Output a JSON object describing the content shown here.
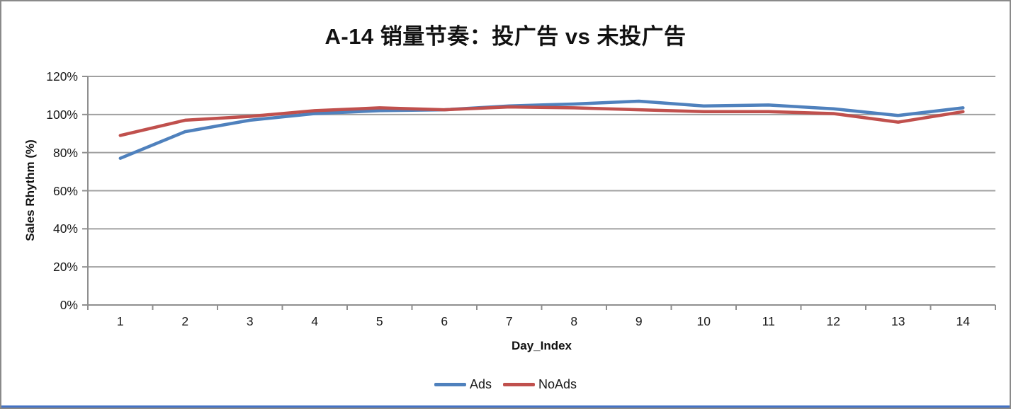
{
  "frame": {
    "background": "#ffffff",
    "border_color": "#8a8a8a",
    "bottom_strip_color": "#4472c4"
  },
  "chart_data": {
    "type": "line",
    "title": "A-14 销量节奏：投广告 vs 未投广告",
    "xlabel": "Day_Index",
    "ylabel": "Sales Rhythm (%)",
    "x": [
      1,
      2,
      3,
      4,
      5,
      6,
      7,
      8,
      9,
      10,
      11,
      12,
      13,
      14
    ],
    "series": [
      {
        "name": "Ads",
        "color": "#4F81BD",
        "values": [
          77,
          91,
          97,
          100.5,
          102,
          102.5,
          104.5,
          105.5,
          107,
          104.5,
          105,
          103,
          99.5,
          103.5
        ]
      },
      {
        "name": "NoAds",
        "color": "#C0504D",
        "values": [
          89,
          97,
          99,
          102,
          103.5,
          102.5,
          104,
          103.5,
          102.5,
          101.5,
          101.5,
          100.5,
          96,
          101.5
        ]
      }
    ],
    "ylim": [
      0,
      120
    ],
    "y_tick_values": [
      0,
      20,
      40,
      60,
      80,
      100,
      120
    ],
    "y_ticks": [
      "0%",
      "20%",
      "40%",
      "60%",
      "80%",
      "100%",
      "120%"
    ],
    "grid": true,
    "legend_position": "bottom",
    "gridline_color": "#A0A0A0",
    "axis_color": "#8F8F8F"
  }
}
